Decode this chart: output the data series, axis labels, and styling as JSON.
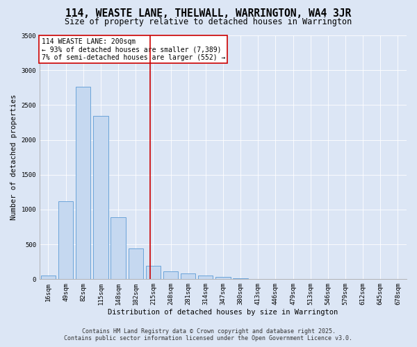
{
  "title": "114, WEASTE LANE, THELWALL, WARRINGTON, WA4 3JR",
  "subtitle": "Size of property relative to detached houses in Warrington",
  "xlabel": "Distribution of detached houses by size in Warrington",
  "ylabel": "Number of detached properties",
  "categories": [
    "16sqm",
    "49sqm",
    "82sqm",
    "115sqm",
    "148sqm",
    "182sqm",
    "215sqm",
    "248sqm",
    "281sqm",
    "314sqm",
    "347sqm",
    "380sqm",
    "413sqm",
    "446sqm",
    "479sqm",
    "513sqm",
    "546sqm",
    "579sqm",
    "612sqm",
    "645sqm",
    "678sqm"
  ],
  "values": [
    50,
    1120,
    2760,
    2340,
    890,
    440,
    190,
    110,
    80,
    55,
    30,
    10,
    5,
    0,
    0,
    0,
    0,
    0,
    0,
    0,
    0
  ],
  "bar_color": "#c5d8f0",
  "bar_edge_color": "#5b9bd5",
  "vline_x_index": 5.82,
  "vline_color": "#cc0000",
  "annotation_line1": "114 WEASTE LANE: 200sqm",
  "annotation_line2": "← 93% of detached houses are smaller (7,389)",
  "annotation_line3": "7% of semi-detached houses are larger (552) →",
  "annotation_box_facecolor": "#ffffff",
  "annotation_box_edgecolor": "#cc0000",
  "ylim": [
    0,
    3500
  ],
  "yticks": [
    0,
    500,
    1000,
    1500,
    2000,
    2500,
    3000,
    3500
  ],
  "bg_color": "#dce6f5",
  "plot_bg_color": "#dce6f5",
  "grid_color": "#ffffff",
  "footer_line1": "Contains HM Land Registry data © Crown copyright and database right 2025.",
  "footer_line2": "Contains public sector information licensed under the Open Government Licence v3.0.",
  "title_fontsize": 10.5,
  "subtitle_fontsize": 8.5,
  "axis_label_fontsize": 7.5,
  "tick_fontsize": 6.5,
  "annotation_fontsize": 7,
  "footer_fontsize": 6
}
